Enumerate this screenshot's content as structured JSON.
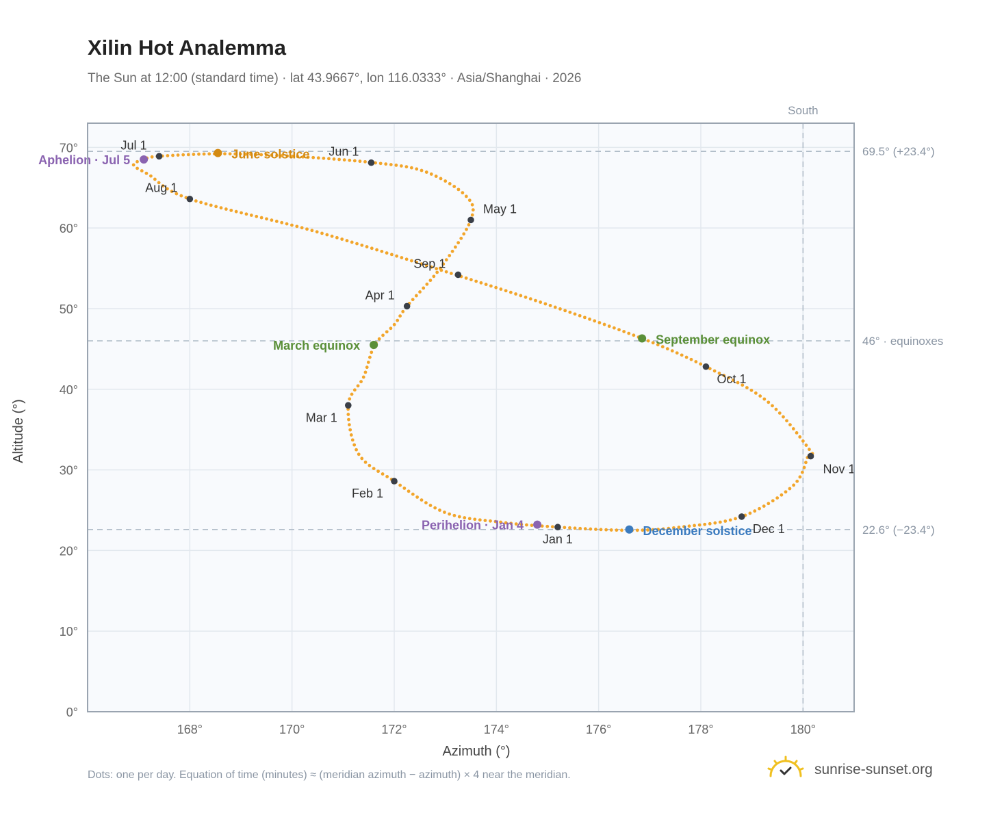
{
  "title": "Xilin Hot Analemma",
  "subtitle": "The Sun at 12:00 (standard time) · lat 43.9667°, lon 116.0333° · Asia/Shanghai · 2026",
  "footnote": "Dots: one per day. Equation of time (minutes) ≈ (meridian azimuth − azimuth) × 4 near the meridian.",
  "brand": {
    "name": "sunrise-sunset.org",
    "logo_icon": "sun-check-icon"
  },
  "colors": {
    "curve": "#f2a52a",
    "month_marker": "#3a3f48",
    "equinox": "#5a8f38",
    "june_solstice": "#d38a12",
    "december_solstice": "#3b7bbf",
    "apsis": "#8a63b0",
    "reference_line": "#b0bcc8",
    "grid": "#e2e8ee",
    "plot_bg": "#f8fafd",
    "frame": "#9aa4b0"
  },
  "chart_data": {
    "type": "scatter",
    "xlabel": "Azimuth (°)",
    "ylabel": "Altitude (°)",
    "xlim": [
      166,
      181
    ],
    "ylim": [
      0,
      73
    ],
    "x_ticks": [
      168,
      170,
      172,
      174,
      176,
      178,
      180
    ],
    "x_tick_labels": [
      "168°",
      "170°",
      "172°",
      "174°",
      "176°",
      "178°",
      "180°"
    ],
    "y_ticks": [
      0,
      10,
      20,
      30,
      40,
      50,
      60,
      70
    ],
    "y_tick_labels": [
      "0°",
      "10°",
      "20°",
      "30°",
      "40°",
      "50°",
      "60°",
      "70°"
    ],
    "grid": true,
    "south_line": {
      "x": 180,
      "label": "South"
    },
    "reference_lines": [
      {
        "y": 69.5,
        "label": "69.5° (+23.4°)"
      },
      {
        "y": 46,
        "label": "46° · equinoxes"
      },
      {
        "y": 22.6,
        "label": "22.6° (−23.4°)"
      }
    ],
    "series": [
      {
        "points": [
          [
            175.2,
            22.9
          ],
          [
            174.1,
            23.5
          ],
          [
            173.0,
            24.7
          ],
          [
            172.0,
            28.6
          ],
          [
            171.3,
            32.0
          ],
          [
            171.1,
            38.0
          ],
          [
            171.4,
            41.5
          ],
          [
            171.62,
            45.5
          ],
          [
            172.0,
            48.0
          ],
          [
            172.25,
            50.3
          ],
          [
            172.9,
            55.0
          ],
          [
            173.5,
            61.0
          ],
          [
            173.4,
            64.0
          ],
          [
            172.6,
            67.0
          ],
          [
            171.6,
            68.1
          ],
          [
            170.0,
            68.9
          ],
          [
            168.6,
            69.2
          ],
          [
            167.4,
            68.9
          ],
          [
            167.1,
            68.5
          ],
          [
            166.9,
            67.8
          ],
          [
            167.2,
            66.6
          ],
          [
            168.0,
            63.6
          ],
          [
            170.5,
            59.5
          ],
          [
            173.2,
            54.2
          ],
          [
            175.0,
            50.5
          ],
          [
            176.85,
            46.3
          ],
          [
            178.1,
            42.8
          ],
          [
            179.3,
            38.5
          ],
          [
            180.15,
            32.3
          ],
          [
            180.1,
            31.7
          ],
          [
            179.8,
            28.0
          ],
          [
            178.8,
            24.2
          ],
          [
            177.6,
            22.9
          ],
          [
            176.6,
            22.5
          ],
          [
            175.2,
            22.9
          ]
        ]
      }
    ],
    "month_markers": [
      {
        "label": "Jan 1",
        "x": 175.2,
        "y": 22.9,
        "anchor": "below"
      },
      {
        "label": "Feb 1",
        "x": 172.0,
        "y": 28.6,
        "anchor": "below-left"
      },
      {
        "label": "Mar 1",
        "x": 171.1,
        "y": 38.0,
        "anchor": "below-left"
      },
      {
        "label": "Apr 1",
        "x": 172.25,
        "y": 50.3,
        "anchor": "above-left"
      },
      {
        "label": "May 1",
        "x": 173.5,
        "y": 61.0,
        "anchor": "above-right"
      },
      {
        "label": "Jun 1",
        "x": 171.55,
        "y": 68.1,
        "anchor": "above-left"
      },
      {
        "label": "Jul 1",
        "x": 167.4,
        "y": 68.9,
        "anchor": "above-left"
      },
      {
        "label": "Aug 1",
        "x": 168.0,
        "y": 63.6,
        "anchor": "above-left"
      },
      {
        "label": "Sep 1",
        "x": 173.25,
        "y": 54.2,
        "anchor": "above-left"
      },
      {
        "label": "Oct 1",
        "x": 178.1,
        "y": 42.8,
        "anchor": "below-right"
      },
      {
        "label": "Nov 1",
        "x": 180.15,
        "y": 31.7,
        "anchor": "right"
      },
      {
        "label": "Dec 1",
        "x": 178.8,
        "y": 24.2,
        "anchor": "below-right"
      }
    ],
    "events": [
      {
        "label": "June solstice",
        "x": 168.55,
        "y": 69.3,
        "color": "june_solstice",
        "anchor": "right"
      },
      {
        "label": "March equinox",
        "x": 171.6,
        "y": 45.5,
        "color": "equinox",
        "anchor": "left"
      },
      {
        "label": "September equinox",
        "x": 176.85,
        "y": 46.3,
        "color": "equinox",
        "anchor": "right"
      },
      {
        "label": "December solstice",
        "x": 176.6,
        "y": 22.6,
        "color": "december_solstice",
        "anchor": "right"
      },
      {
        "label": "Aphelion · Jul 5",
        "x": 167.1,
        "y": 68.5,
        "color": "apsis",
        "anchor": "left"
      },
      {
        "label": "Perihelion · Jan 4",
        "x": 174.8,
        "y": 23.2,
        "color": "apsis",
        "anchor": "left"
      }
    ]
  }
}
